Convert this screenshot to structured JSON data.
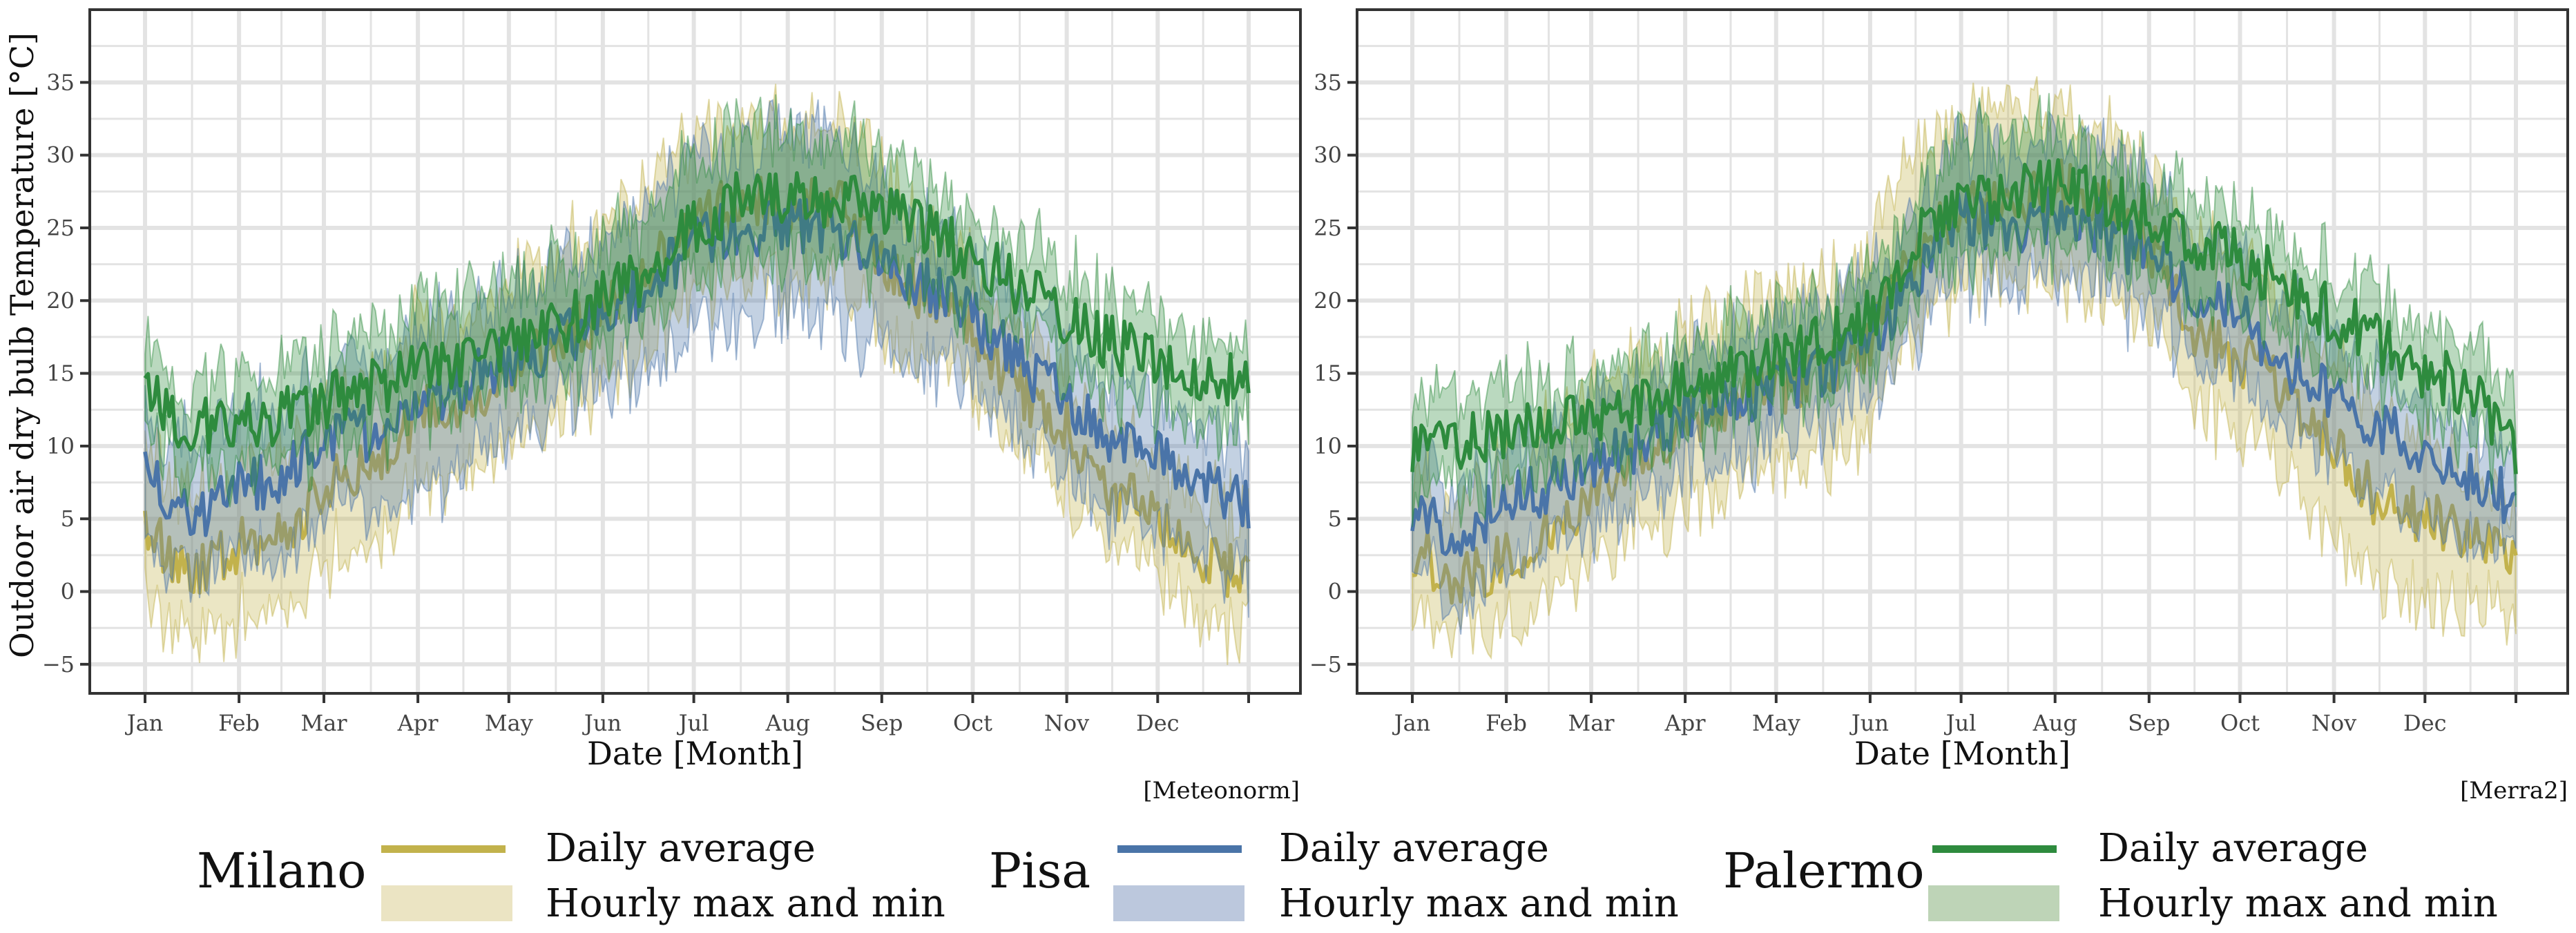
{
  "chart_data": [
    {
      "type": "line",
      "panel": "left",
      "title": "",
      "source": "[Meteonorm]",
      "xlabel": "Date [Month]",
      "ylabel": "Outdoor air dry bulb Temperature [°C]",
      "ylim": [
        -7,
        40
      ],
      "yticks": [
        -5,
        0,
        5,
        10,
        15,
        20,
        25,
        30,
        35
      ],
      "ytick_labels": [
        "−5",
        "0",
        "5",
        "10",
        "15",
        "20",
        "25",
        "30",
        "35"
      ],
      "xlim": [
        1,
        365
      ],
      "xticks": [
        1,
        32,
        60,
        91,
        121,
        152,
        182,
        213,
        244,
        274,
        305,
        335,
        365
      ],
      "xtick_labels": [
        "Jan",
        "Feb",
        "Mar",
        "Apr",
        "May",
        "Jun",
        "Jul",
        "Aug",
        "Sep",
        "Oct",
        "Nov",
        "Dec",
        ""
      ],
      "series": [
        {
          "name": "Milano",
          "color": "#c2b24c",
          "x": [
            1,
            15,
            32,
            46,
            60,
            75,
            91,
            105,
            121,
            136,
            152,
            167,
            182,
            197,
            213,
            228,
            244,
            259,
            274,
            289,
            305,
            320,
            335,
            350,
            365
          ],
          "avg": [
            5,
            1,
            3,
            4,
            7,
            9,
            12,
            13,
            15,
            17,
            19,
            22,
            25,
            27,
            26,
            27,
            23,
            20,
            18,
            14,
            11,
            7,
            5,
            2,
            1
          ],
          "max": [
            11,
            6,
            8,
            10,
            13,
            15,
            18,
            19,
            21,
            23,
            25,
            28,
            31,
            33,
            32,
            32,
            29,
            25,
            22,
            18,
            15,
            11,
            9,
            6,
            5
          ],
          "min": [
            0,
            -3,
            -2,
            -1,
            2,
            4,
            7,
            8,
            10,
            12,
            14,
            17,
            20,
            22,
            21,
            22,
            18,
            16,
            14,
            10,
            7,
            3,
            1,
            -2,
            -3
          ]
        },
        {
          "name": "Pisa",
          "color": "#4a74a8",
          "x": [
            1,
            15,
            32,
            46,
            60,
            75,
            91,
            105,
            121,
            136,
            152,
            167,
            182,
            197,
            213,
            228,
            244,
            259,
            274,
            289,
            305,
            320,
            335,
            350,
            365
          ],
          "avg": [
            9,
            5,
            7,
            8,
            10,
            11,
            13,
            14,
            16,
            17,
            19,
            21,
            24,
            25,
            25,
            25,
            23,
            21,
            19,
            16,
            13,
            10,
            9,
            7,
            6
          ],
          "max": [
            13,
            10,
            12,
            13,
            14,
            16,
            18,
            19,
            21,
            22,
            24,
            27,
            30,
            31,
            31,
            31,
            28,
            25,
            23,
            20,
            17,
            14,
            13,
            11,
            10
          ],
          "min": [
            4,
            1,
            2,
            3,
            5,
            6,
            7,
            8,
            11,
            13,
            14,
            16,
            18,
            19,
            19,
            19,
            17,
            16,
            15,
            11,
            8,
            5,
            4,
            2,
            1
          ]
        },
        {
          "name": "Palermo",
          "color": "#2e8b3e",
          "x": [
            1,
            15,
            32,
            46,
            60,
            75,
            91,
            105,
            121,
            136,
            152,
            167,
            182,
            197,
            213,
            228,
            244,
            259,
            274,
            289,
            305,
            320,
            335,
            350,
            365
          ],
          "avg": [
            14,
            11,
            12,
            12,
            13,
            14,
            15,
            16,
            17,
            18,
            20,
            22,
            25,
            27,
            27,
            27,
            26,
            25,
            23,
            21,
            19,
            17,
            16,
            15,
            14
          ],
          "max": [
            17,
            14,
            15,
            15,
            16,
            17,
            19,
            20,
            21,
            22,
            24,
            26,
            30,
            32,
            31,
            31,
            30,
            28,
            26,
            24,
            22,
            20,
            19,
            18,
            17
          ],
          "min": [
            11,
            8,
            9,
            9,
            10,
            11,
            12,
            13,
            14,
            15,
            17,
            19,
            22,
            23,
            23,
            23,
            22,
            21,
            20,
            18,
            16,
            14,
            13,
            12,
            11
          ]
        }
      ]
    },
    {
      "type": "line",
      "panel": "right",
      "title": "",
      "source": "[Merra2]",
      "xlabel": "Date [Month]",
      "ylabel": "",
      "ylim": [
        -7,
        40
      ],
      "yticks": [
        -5,
        0,
        5,
        10,
        15,
        20,
        25,
        30,
        35
      ],
      "ytick_labels": [
        "−5",
        "0",
        "5",
        "10",
        "15",
        "20",
        "25",
        "30",
        "35"
      ],
      "xlim": [
        1,
        365
      ],
      "xticks": [
        1,
        32,
        60,
        91,
        121,
        152,
        182,
        213,
        244,
        274,
        305,
        335,
        365
      ],
      "xtick_labels": [
        "Jan",
        "Feb",
        "Mar",
        "Apr",
        "May",
        "Jun",
        "Jul",
        "Aug",
        "Sep",
        "Oct",
        "Nov",
        "Dec",
        ""
      ],
      "series": [
        {
          "name": "Milano",
          "color": "#c2b24c",
          "x": [
            1,
            15,
            32,
            46,
            60,
            75,
            91,
            105,
            121,
            136,
            152,
            167,
            182,
            197,
            213,
            228,
            244,
            259,
            274,
            289,
            305,
            320,
            335,
            350,
            365
          ],
          "avg": [
            3,
            1,
            2,
            4,
            7,
            9,
            12,
            13,
            14,
            15,
            17,
            23,
            27,
            26,
            28,
            27,
            24,
            18,
            16,
            14,
            10,
            6,
            5,
            4,
            3
          ],
          "max": [
            9,
            6,
            8,
            11,
            14,
            16,
            18,
            19,
            20,
            21,
            23,
            30,
            33,
            33,
            34,
            32,
            29,
            24,
            22,
            20,
            16,
            12,
            10,
            8,
            7
          ],
          "min": [
            -1,
            -2,
            -2,
            0,
            2,
            4,
            6,
            7,
            8,
            9,
            11,
            18,
            22,
            21,
            22,
            21,
            19,
            13,
            11,
            8,
            4,
            0,
            -1,
            -1,
            -1
          ]
        },
        {
          "name": "Pisa",
          "color": "#4a74a8",
          "x": [
            1,
            15,
            32,
            46,
            60,
            75,
            91,
            105,
            121,
            136,
            152,
            167,
            182,
            197,
            213,
            228,
            244,
            259,
            274,
            289,
            305,
            320,
            335,
            350,
            365
          ],
          "avg": [
            6,
            4,
            6,
            7,
            9,
            10,
            12,
            13,
            14,
            15,
            17,
            22,
            26,
            25,
            26,
            25,
            23,
            20,
            19,
            16,
            13,
            11,
            10,
            8,
            6
          ],
          "max": [
            10,
            8,
            10,
            11,
            13,
            14,
            16,
            17,
            18,
            19,
            21,
            26,
            31,
            30,
            31,
            30,
            28,
            24,
            23,
            20,
            17,
            15,
            14,
            12,
            10
          ],
          "min": [
            2,
            0,
            2,
            3,
            5,
            6,
            8,
            9,
            10,
            11,
            13,
            18,
            22,
            21,
            22,
            21,
            19,
            16,
            15,
            12,
            9,
            7,
            6,
            4,
            3
          ]
        },
        {
          "name": "Palermo",
          "color": "#2e8b3e",
          "x": [
            1,
            15,
            32,
            46,
            60,
            75,
            91,
            105,
            121,
            136,
            152,
            167,
            182,
            197,
            213,
            228,
            244,
            259,
            274,
            289,
            305,
            320,
            335,
            350,
            365
          ],
          "avg": [
            10,
            10,
            11,
            11,
            12,
            13,
            14,
            15,
            16,
            17,
            19,
            24,
            27,
            27,
            28,
            27,
            26,
            24,
            23,
            21,
            19,
            17,
            15,
            14,
            10
          ],
          "max": [
            13,
            13,
            14,
            14,
            15,
            16,
            17,
            18,
            19,
            20,
            22,
            27,
            31,
            31,
            32,
            30,
            29,
            27,
            26,
            24,
            22,
            20,
            18,
            17,
            13
          ],
          "min": [
            7,
            7,
            8,
            8,
            9,
            10,
            11,
            12,
            13,
            14,
            16,
            21,
            23,
            23,
            24,
            23,
            23,
            21,
            20,
            18,
            16,
            14,
            12,
            11,
            8
          ]
        }
      ]
    }
  ],
  "legend": {
    "entries": [
      {
        "city": "Milano",
        "line_label": "Daily average",
        "band_label": "Hourly max and min",
        "line_color": "#c2b24c",
        "band_color": "#ebe4c3"
      },
      {
        "city": "Pisa",
        "line_label": "Daily average",
        "band_label": "Hourly max and min",
        "line_color": "#4a74a8",
        "band_color": "#bcc8dd"
      },
      {
        "city": "Palermo",
        "line_label": "Daily average",
        "band_label": "Hourly max and min",
        "line_color": "#2e8b3e",
        "band_color": "#bed4b7"
      }
    ]
  },
  "colors": {
    "grid": "#e3e3e3",
    "frame": "#333333"
  }
}
